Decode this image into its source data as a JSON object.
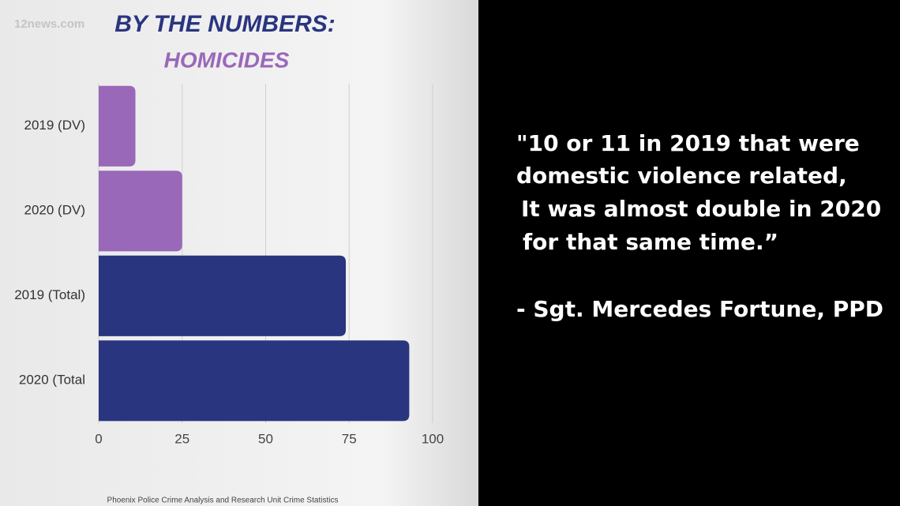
{
  "watermark": "12news.com",
  "chart_data": {
    "type": "barh",
    "title": "BY THE NUMBERS:",
    "subtitle": "HOMICIDES",
    "categories": [
      "2019 (DV)",
      "2020 (DV)",
      "2019 (Total)",
      "2020 (Total"
    ],
    "values": [
      11,
      25,
      74,
      93
    ],
    "colors": [
      "#9a68b8",
      "#9a68b8",
      "#2a3580",
      "#2a3580"
    ],
    "xlim": [
      0,
      100
    ],
    "xticks": [
      0,
      25,
      50,
      75,
      100
    ],
    "grid": true,
    "source": "Phoenix Police Crime Analysis and Research Unit Crime Statistics"
  },
  "quote": {
    "lines": [
      "\"10 or 11 in 2019 that were",
      "domestic violence related,",
      "It was almost double in 2020",
      "for that same time.”"
    ],
    "attribution": "- Sgt. Mercedes Fortune, PPD"
  }
}
